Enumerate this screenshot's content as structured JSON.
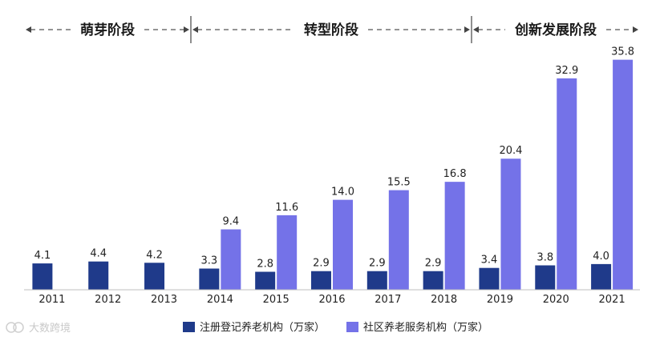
{
  "chart_data": {
    "type": "bar",
    "categories": [
      "2011",
      "2012",
      "2013",
      "2014",
      "2015",
      "2016",
      "2017",
      "2018",
      "2019",
      "2020",
      "2021"
    ],
    "series": [
      {
        "name": "注册登记养老机构（万家）",
        "color": "#1f3a8a",
        "values": [
          4.1,
          4.4,
          4.2,
          3.3,
          2.8,
          2.9,
          2.9,
          2.9,
          3.4,
          3.8,
          4.0
        ]
      },
      {
        "name": "社区养老服务机构（万家）",
        "color": "#7472e8",
        "values": [
          null,
          null,
          null,
          9.4,
          11.6,
          14.0,
          15.5,
          16.8,
          20.4,
          32.9,
          35.8
        ]
      }
    ],
    "ylim": [
      0,
      36.5
    ],
    "legend": "bottom",
    "grid": false,
    "phases": [
      {
        "label": "萌芽阶段",
        "from": "2011",
        "to": "2013"
      },
      {
        "label": "转型阶段",
        "from": "2014",
        "to": "2018"
      },
      {
        "label": "创新发展阶段",
        "from": "2019",
        "to": "2021"
      }
    ]
  },
  "watermark": {
    "text": "大数跨境"
  }
}
